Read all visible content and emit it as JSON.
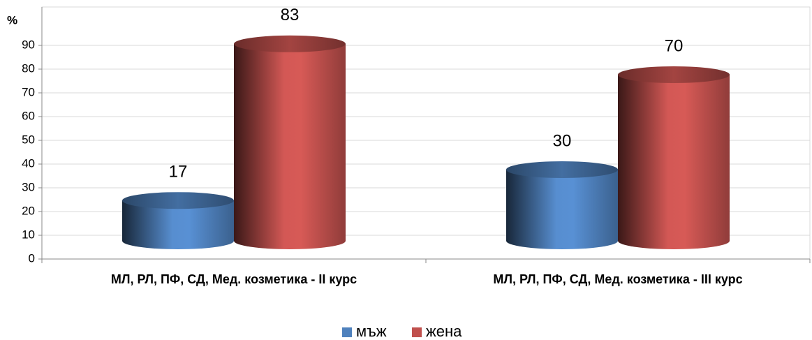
{
  "chart_data": {
    "type": "bar3d",
    "y_label": "%",
    "categories": [
      "МЛ, РЛ, ПФ, СД, Мед. козметика - II курс",
      "МЛ, РЛ, ПФ, СД, Мед. козметика - III курс"
    ],
    "series": [
      {
        "name": "мъж",
        "color": "#4f81bd",
        "values": [
          17,
          30
        ]
      },
      {
        "name": "жена",
        "color": "#c0504d",
        "values": [
          83,
          70
        ]
      }
    ],
    "ylim": [
      0,
      100
    ],
    "yticks": [
      0,
      10,
      20,
      30,
      40,
      50,
      60,
      70,
      80,
      90
    ],
    "grid": true,
    "legend": "bottom"
  }
}
